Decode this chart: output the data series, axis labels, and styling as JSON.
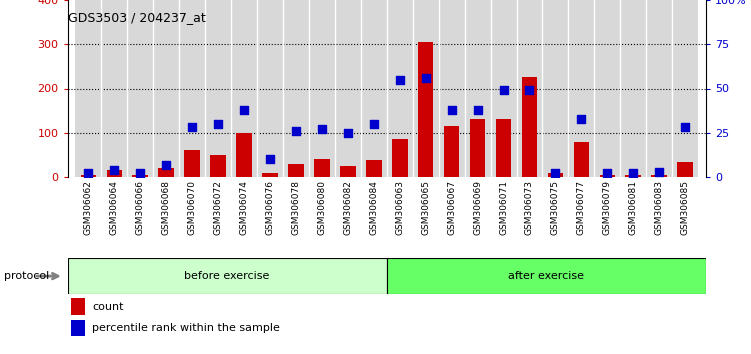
{
  "title": "GDS3503 / 204237_at",
  "categories": [
    "GSM306062",
    "GSM306064",
    "GSM306066",
    "GSM306068",
    "GSM306070",
    "GSM306072",
    "GSM306074",
    "GSM306076",
    "GSM306078",
    "GSM306080",
    "GSM306082",
    "GSM306084",
    "GSM306063",
    "GSM306065",
    "GSM306067",
    "GSM306069",
    "GSM306071",
    "GSM306073",
    "GSM306075",
    "GSM306077",
    "GSM306079",
    "GSM306081",
    "GSM306083",
    "GSM306085"
  ],
  "count_values": [
    5,
    15,
    5,
    20,
    62,
    50,
    100,
    8,
    30,
    40,
    25,
    38,
    85,
    305,
    115,
    130,
    130,
    225,
    8,
    80,
    5,
    5,
    5,
    35
  ],
  "percentile_values": [
    2,
    4,
    2,
    7,
    28,
    30,
    38,
    10,
    26,
    27,
    25,
    30,
    55,
    56,
    38,
    38,
    49,
    49,
    2,
    33,
    2,
    2,
    3,
    28
  ],
  "before_exercise_count": 12,
  "after_exercise_count": 12,
  "bar_color": "#cc0000",
  "dot_color": "#0000cc",
  "before_color": "#ccffcc",
  "after_color": "#66ff66",
  "ylim_left": [
    0,
    400
  ],
  "ylim_right": [
    0,
    100
  ],
  "yticks_left": [
    0,
    100,
    200,
    300,
    400
  ],
  "yticks_right": [
    0,
    25,
    50,
    75,
    100
  ],
  "ylabel_left_color": "#cc0000",
  "ylabel_right_color": "#0000cc",
  "grid_yticks": [
    100,
    200,
    300
  ],
  "chart_bg": "#ffffff",
  "plot_bg": "#ffffff"
}
